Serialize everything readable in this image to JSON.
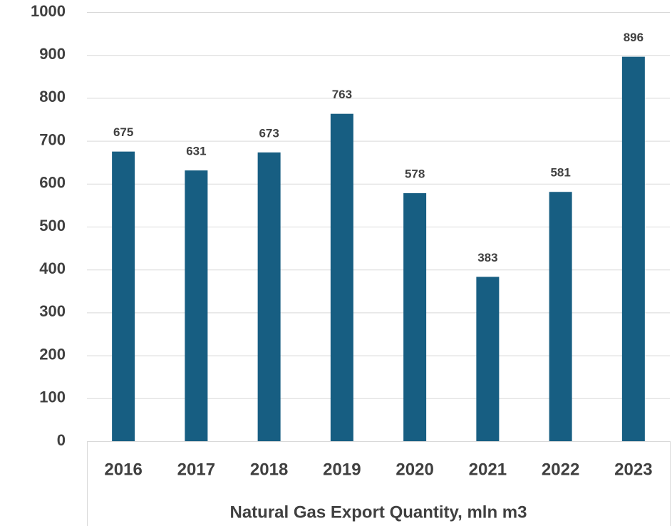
{
  "chart_data": {
    "type": "bar",
    "x_label": "Natural Gas Export Quantity, mln m3",
    "categories": [
      "2016",
      "2017",
      "2018",
      "2019",
      "2020",
      "2021",
      "2022",
      "2023"
    ],
    "values": [
      675,
      631,
      673,
      763,
      578,
      383,
      581,
      896
    ],
    "color": "#175e82",
    "ylim": [
      0,
      1000
    ],
    "yticks": [
      0,
      100,
      200,
      300,
      400,
      500,
      600,
      700,
      800,
      900,
      1000
    ],
    "grid": true
  }
}
